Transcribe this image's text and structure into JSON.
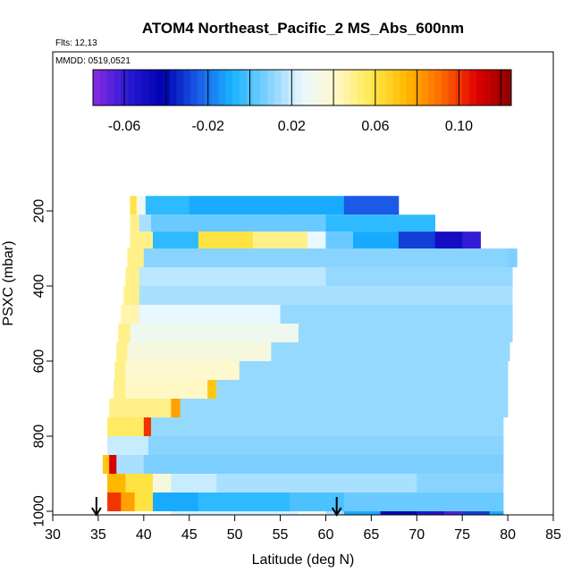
{
  "chart_data": {
    "type": "heatmap",
    "title": "ATOM4 Northeast_Pacific_2 MS_Abs_600nm",
    "flights_label": "Flts: 12,13",
    "dates_label": "MMDD: 0519,0521",
    "xlabel": "Latitude (deg N)",
    "ylabel": "PSXC (mbar)",
    "xlim": [
      30,
      85
    ],
    "ylim": [
      1000,
      40
    ],
    "x_ticks": [
      30,
      35,
      40,
      45,
      50,
      55,
      60,
      65,
      70,
      75,
      80,
      85
    ],
    "y_ticks": [
      200,
      400,
      600,
      800,
      1000
    ],
    "colorbar": {
      "range": [
        -0.075,
        0.125
      ],
      "ticks": [
        -0.06,
        -0.02,
        0.02,
        0.06,
        0.1
      ],
      "tick_labels": [
        "-0.06",
        "-0.02",
        "0.02",
        "0.06",
        "0.10"
      ],
      "colors": [
        "#8a2be2",
        "#2a1ad6",
        "#0000b0",
        "#1a5ae6",
        "#18b4ff",
        "#7fd0ff",
        "#e8f8ff",
        "#fff8c8",
        "#ffe84a",
        "#ffb800",
        "#ff6a00",
        "#e00000",
        "#8b0000"
      ]
    },
    "flight_markers": [
      34.8,
      61.2
    ],
    "rows": [
      {
        "p_top": 160,
        "p_bot": 210,
        "lat_start": 38.5,
        "lat_end": 68,
        "segments": [
          [
            38.5,
            39.2,
            0.06
          ],
          [
            39.2,
            40.2,
            0.03
          ],
          [
            40.2,
            45,
            -0.005
          ],
          [
            45,
            55,
            -0.01
          ],
          [
            55,
            62,
            -0.01
          ],
          [
            62,
            68,
            -0.025
          ]
        ]
      },
      {
        "p_top": 210,
        "p_bot": 255,
        "lat_start": 38.5,
        "lat_end": 72,
        "segments": [
          [
            38.5,
            39.5,
            0.05
          ],
          [
            39.5,
            40.8,
            0.015
          ],
          [
            40.8,
            60,
            0.005
          ],
          [
            60,
            72,
            -0.005
          ]
        ]
      },
      {
        "p_top": 255,
        "p_bot": 300,
        "lat_start": 38.5,
        "lat_end": 77,
        "segments": [
          [
            38.5,
            41,
            0.05
          ],
          [
            41,
            46,
            -0.005
          ],
          [
            46,
            52,
            0.06
          ],
          [
            52,
            58,
            0.05
          ],
          [
            58,
            60,
            0.025
          ],
          [
            60,
            63,
            0.005
          ],
          [
            63,
            68,
            -0.01
          ],
          [
            68,
            72,
            -0.03
          ],
          [
            72,
            75,
            -0.05
          ],
          [
            75,
            77,
            -0.06
          ]
        ]
      },
      {
        "p_top": 300,
        "p_bot": 350,
        "lat_start": 38.2,
        "lat_end": 81,
        "segments": [
          [
            38.2,
            40,
            0.05
          ],
          [
            40,
            80,
            0.01
          ],
          [
            80,
            81,
            0.008
          ]
        ]
      },
      {
        "p_top": 350,
        "p_bot": 400,
        "lat_start": 38.0,
        "lat_end": 80.5,
        "segments": [
          [
            38,
            39.5,
            0.05
          ],
          [
            39.5,
            60,
            0.018
          ],
          [
            60,
            80.5,
            0.012
          ]
        ]
      },
      {
        "p_top": 400,
        "p_bot": 450,
        "lat_start": 37.8,
        "lat_end": 80.5,
        "segments": [
          [
            37.8,
            39.5,
            0.05
          ],
          [
            39.5,
            80.5,
            0.015
          ]
        ]
      },
      {
        "p_top": 450,
        "p_bot": 500,
        "lat_start": 37.5,
        "lat_end": 80.5,
        "segments": [
          [
            37.5,
            39.5,
            0.045
          ],
          [
            39.5,
            55,
            0.025
          ],
          [
            55,
            80.5,
            0.012
          ]
        ]
      },
      {
        "p_top": 500,
        "p_bot": 550,
        "lat_start": 37.2,
        "lat_end": 80.5,
        "segments": [
          [
            37.2,
            38.5,
            0.05
          ],
          [
            38.5,
            57,
            0.03
          ],
          [
            57,
            80.5,
            0.012
          ]
        ]
      },
      {
        "p_top": 550,
        "p_bot": 600,
        "lat_start": 37.0,
        "lat_end": 80.2,
        "segments": [
          [
            37,
            38.2,
            0.05
          ],
          [
            38.2,
            54,
            0.035
          ],
          [
            54,
            80.2,
            0.012
          ]
        ]
      },
      {
        "p_top": 600,
        "p_bot": 650,
        "lat_start": 36.8,
        "lat_end": 80.0,
        "segments": [
          [
            36.8,
            38,
            0.05
          ],
          [
            38,
            50.5,
            0.04
          ],
          [
            50.5,
            80,
            0.012
          ]
        ]
      },
      {
        "p_top": 650,
        "p_bot": 700,
        "lat_start": 36.7,
        "lat_end": 80.0,
        "segments": [
          [
            36.7,
            38,
            0.05
          ],
          [
            38,
            47,
            0.042
          ],
          [
            47,
            48,
            0.07
          ],
          [
            48,
            80,
            0.012
          ]
        ]
      },
      {
        "p_top": 700,
        "p_bot": 750,
        "lat_start": 36.2,
        "lat_end": 80.0,
        "segments": [
          [
            36.2,
            37,
            0.05
          ],
          [
            37,
            43,
            0.05
          ],
          [
            43,
            44,
            0.08
          ],
          [
            44,
            80,
            0.012
          ]
        ]
      },
      {
        "p_top": 750,
        "p_bot": 800,
        "lat_start": 36.0,
        "lat_end": 79.5,
        "segments": [
          [
            36,
            40,
            0.055
          ],
          [
            40,
            40.8,
            0.1
          ],
          [
            40.8,
            79.5,
            0.012
          ]
        ]
      },
      {
        "p_top": 800,
        "p_bot": 850,
        "lat_start": 36.0,
        "lat_end": 79.5,
        "segments": [
          [
            36,
            40.5,
            0.02
          ],
          [
            40.5,
            79.5,
            0.01
          ]
        ]
      },
      {
        "p_top": 850,
        "p_bot": 900,
        "lat_start": 35.5,
        "lat_end": 79.5,
        "segments": [
          [
            35.5,
            36.2,
            0.07
          ],
          [
            36.2,
            37,
            0.11
          ],
          [
            37,
            40,
            0.015
          ],
          [
            40,
            79.5,
            0.008
          ]
        ]
      },
      {
        "p_top": 900,
        "p_bot": 950,
        "lat_start": 36.0,
        "lat_end": 79.5,
        "segments": [
          [
            36,
            38,
            0.075
          ],
          [
            38,
            41,
            0.06
          ],
          [
            41,
            43,
            0.035
          ],
          [
            43,
            48,
            0.02
          ],
          [
            48,
            70,
            0.015
          ],
          [
            70,
            79.5,
            0.01
          ]
        ]
      },
      {
        "p_top": 950,
        "p_bot": 1000,
        "lat_start": 36.0,
        "lat_end": 79.5,
        "segments": [
          [
            36,
            37.5,
            0.1
          ],
          [
            37.5,
            39,
            0.08
          ],
          [
            39,
            41,
            0.06
          ],
          [
            41,
            46,
            -0.01
          ],
          [
            46,
            56,
            -0.005
          ],
          [
            56,
            62,
            0.0
          ],
          [
            62,
            79.5,
            0.005
          ]
        ]
      },
      {
        "p_top": 1000,
        "p_bot": 1050,
        "lat_start": 43.0,
        "lat_end": 79.5,
        "segments": [
          [
            43,
            57,
            0.022
          ],
          [
            57,
            60,
            0.03
          ],
          [
            60,
            62,
            0.015
          ],
          [
            62,
            66,
            -0.01
          ],
          [
            66,
            70,
            -0.04
          ],
          [
            70,
            73,
            -0.055
          ],
          [
            73,
            75,
            -0.065
          ],
          [
            75,
            78,
            -0.03
          ],
          [
            78,
            79.5,
            -0.01
          ]
        ]
      }
    ]
  }
}
